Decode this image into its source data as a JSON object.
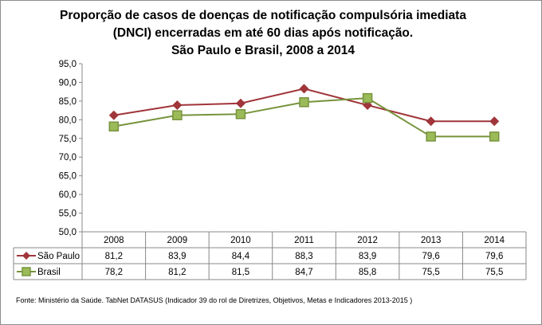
{
  "chart_data": {
    "type": "line",
    "title": [
      "Proporção de casos de doenças de notificação compulsória imediata",
      "(DNCI) encerradas em até 60 dias após notificação.",
      "São Paulo e Brasil, 2008 a 2014"
    ],
    "categories": [
      "2008",
      "2009",
      "2010",
      "2011",
      "2012",
      "2013",
      "2014"
    ],
    "ylim": [
      50,
      95
    ],
    "yticks": [
      "50,0",
      "55,0",
      "60,0",
      "65,0",
      "70,0",
      "75,0",
      "80,0",
      "85,0",
      "90,0",
      "95,0"
    ],
    "grid": false,
    "legend": "data-table",
    "series": [
      {
        "name": "São Paulo",
        "values": [
          81.2,
          83.9,
          84.4,
          88.3,
          83.9,
          79.6,
          79.6
        ],
        "labels": [
          "81,2",
          "83,9",
          "84,4",
          "88,3",
          "83,9",
          "79,6",
          "79,6"
        ],
        "color": "#a0353a",
        "marker": "diamond"
      },
      {
        "name": "Brasil",
        "values": [
          78.2,
          81.2,
          81.5,
          84.7,
          85.8,
          75.5,
          75.5
        ],
        "labels": [
          "78,2",
          "81,2",
          "81,5",
          "84,7",
          "85,8",
          "75,5",
          "75,5"
        ],
        "color": "#77933c",
        "marker": "square"
      }
    ],
    "source": "Fonte: Ministério da Saúde. TabNet DATASUS (Indicador 39 do rol de Diretrizes, Objetivos, Metas e Indicadores 2013-2015 )"
  }
}
